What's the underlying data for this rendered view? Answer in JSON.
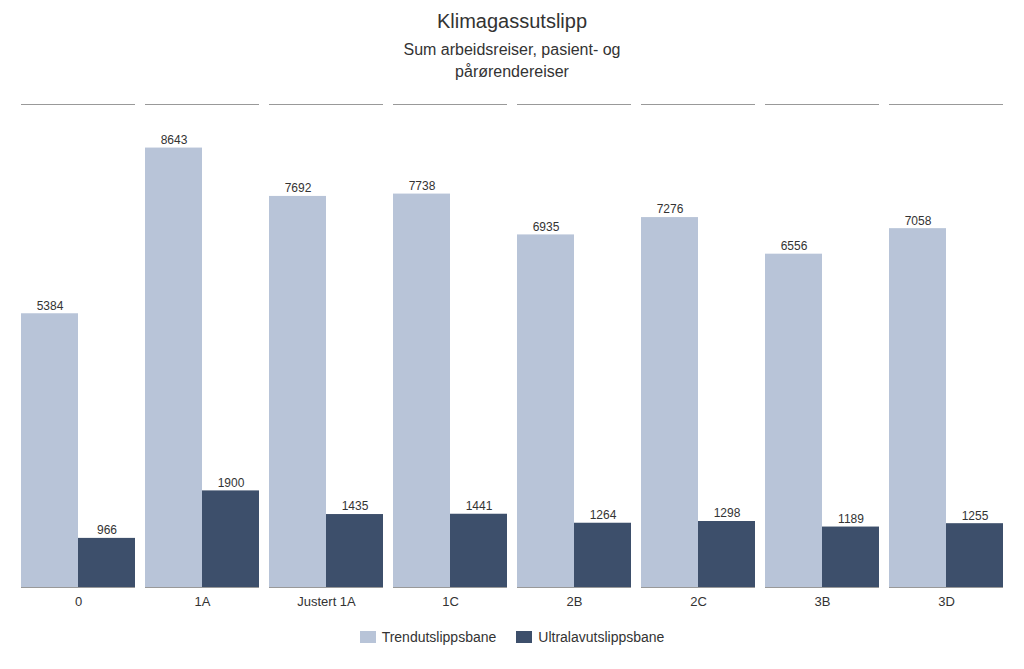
{
  "chart_data": {
    "type": "bar",
    "title": "Klimagassutslipp",
    "subtitle": "Sum arbeidsreiser, pasient- og\npårørendereiser",
    "categories": [
      "0",
      "1A",
      "Justert 1A",
      "1C",
      "2B",
      "2C",
      "3B",
      "3D"
    ],
    "series": [
      {
        "name": "Trendutslippsbane",
        "color": "#b8c4d8",
        "values": [
          5384,
          8643,
          7692,
          7738,
          6935,
          7276,
          6556,
          7058
        ]
      },
      {
        "name": "Ultralavutslippsbane",
        "color": "#3d4f6b",
        "values": [
          966,
          1900,
          1435,
          1441,
          1264,
          1298,
          1189,
          1255
        ]
      }
    ],
    "ylim": [
      0,
      9500
    ],
    "grid": false,
    "legend": "bottom",
    "data_labels": true,
    "tick_labels": "x"
  }
}
